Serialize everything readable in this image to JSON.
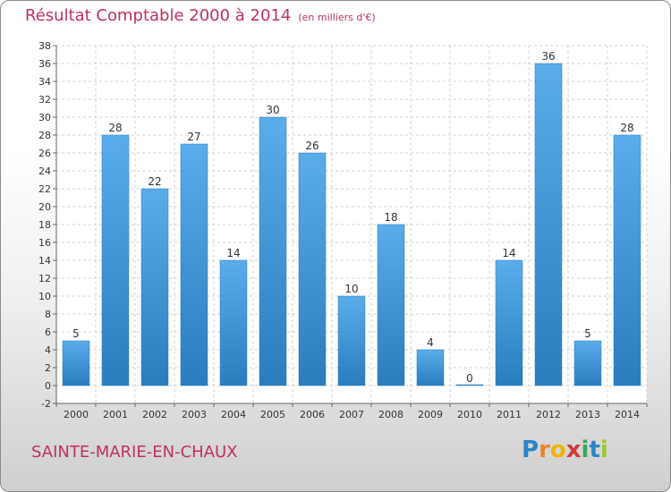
{
  "chart_data": {
    "type": "bar",
    "title": "Résultat Comptable 2000 à 2014",
    "subtitle": "(en milliers d'€)",
    "categories": [
      "2000",
      "2001",
      "2002",
      "2003",
      "2004",
      "2005",
      "2006",
      "2007",
      "2008",
      "2009",
      "2010",
      "2011",
      "2012",
      "2013",
      "2014"
    ],
    "values": [
      5,
      28,
      22,
      27,
      14,
      30,
      26,
      10,
      18,
      4,
      0,
      14,
      36,
      5,
      28
    ],
    "ylim": [
      -2,
      38
    ],
    "yticks": [
      -2,
      0,
      2,
      4,
      6,
      8,
      10,
      12,
      14,
      16,
      18,
      20,
      22,
      24,
      26,
      28,
      30,
      32,
      34,
      36,
      38
    ],
    "xlabel": "",
    "ylabel": "",
    "grid": true
  },
  "footer": {
    "commune": "SAINTE-MARIE-EN-CHAUX",
    "brand": "Proxiti"
  },
  "colors": {
    "bar_light": "#5aacea",
    "bar_dark": "#2a7dbd",
    "title": "#c03060",
    "grid": "#d2d2d2"
  }
}
